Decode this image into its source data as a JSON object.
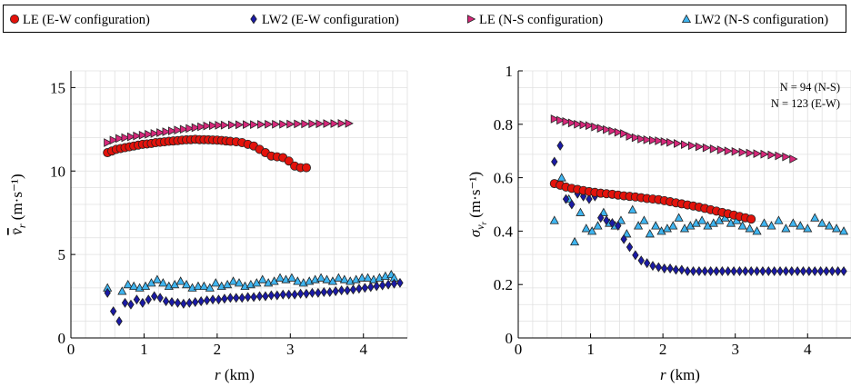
{
  "legend": {
    "entries": [
      {
        "label": "LE (E-W configuration)",
        "marker": "circle",
        "color": "#e3120b"
      },
      {
        "label": "LW2 (E-W configuration)",
        "marker": "diamond",
        "color": "#1a1aa6"
      },
      {
        "label": "LE (N-S configuration)",
        "marker": "triangle-right",
        "color": "#d6287a"
      },
      {
        "label": "LW2 (N-S configuration)",
        "marker": "triangle-up",
        "color": "#3fb5f0"
      }
    ]
  },
  "chart_data": [
    {
      "type": "scatter",
      "title": "",
      "xlabel": "r (km)",
      "ylabel": "v̄_r (m·s⁻¹)",
      "xlim": [
        0,
        4.6
      ],
      "ylim": [
        0,
        16
      ],
      "xticks": [
        0,
        1,
        2,
        3,
        4
      ],
      "yticks": [
        0,
        5,
        10,
        15
      ],
      "grid": true,
      "annotations": [],
      "series": [
        {
          "name": "LE (E-W configuration)",
          "x": [
            0.5,
            0.56,
            0.62,
            0.68,
            0.74,
            0.8,
            0.86,
            0.92,
            0.98,
            1.04,
            1.1,
            1.16,
            1.22,
            1.28,
            1.34,
            1.4,
            1.46,
            1.52,
            1.58,
            1.64,
            1.7,
            1.76,
            1.82,
            1.88,
            1.94,
            2.0,
            2.06,
            2.12,
            2.18,
            2.26,
            2.34,
            2.42,
            2.5,
            2.58,
            2.66,
            2.74,
            2.82,
            2.9,
            2.98,
            3.06,
            3.14,
            3.22
          ],
          "y": [
            11.1,
            11.2,
            11.3,
            11.35,
            11.4,
            11.45,
            11.5,
            11.55,
            11.6,
            11.62,
            11.65,
            11.7,
            11.72,
            11.75,
            11.78,
            11.8,
            11.82,
            11.85,
            11.87,
            11.88,
            11.9,
            11.88,
            11.88,
            11.87,
            11.86,
            11.85,
            11.83,
            11.8,
            11.78,
            11.75,
            11.7,
            11.6,
            11.5,
            11.3,
            11.1,
            10.9,
            10.85,
            10.8,
            10.6,
            10.3,
            10.2,
            10.2
          ]
        },
        {
          "name": "LW2 (E-W configuration)",
          "x": [
            0.5,
            0.58,
            0.66,
            0.74,
            0.82,
            0.9,
            0.98,
            1.06,
            1.14,
            1.22,
            1.3,
            1.38,
            1.46,
            1.54,
            1.62,
            1.7,
            1.78,
            1.86,
            1.94,
            2.02,
            2.1,
            2.18,
            2.26,
            2.34,
            2.42,
            2.5,
            2.58,
            2.66,
            2.74,
            2.82,
            2.9,
            2.98,
            3.06,
            3.14,
            3.22,
            3.3,
            3.38,
            3.46,
            3.54,
            3.62,
            3.7,
            3.78,
            3.86,
            3.94,
            4.02,
            4.1,
            4.18,
            4.26,
            4.34,
            4.42,
            4.5
          ],
          "y": [
            2.7,
            1.6,
            1.0,
            2.1,
            2.0,
            2.3,
            2.1,
            2.3,
            2.5,
            2.4,
            2.2,
            2.15,
            2.1,
            2.05,
            2.1,
            2.15,
            2.2,
            2.25,
            2.3,
            2.3,
            2.35,
            2.4,
            2.4,
            2.4,
            2.45,
            2.45,
            2.5,
            2.5,
            2.55,
            2.55,
            2.6,
            2.6,
            2.6,
            2.65,
            2.65,
            2.7,
            2.7,
            2.75,
            2.75,
            2.8,
            2.85,
            2.85,
            2.9,
            2.95,
            3.0,
            3.05,
            3.1,
            3.15,
            3.2,
            3.25,
            3.3
          ]
        },
        {
          "name": "LE (N-S configuration)",
          "x": [
            0.5,
            0.58,
            0.66,
            0.74,
            0.82,
            0.9,
            0.98,
            1.06,
            1.14,
            1.22,
            1.3,
            1.38,
            1.46,
            1.54,
            1.62,
            1.7,
            1.78,
            1.86,
            1.94,
            2.02,
            2.1,
            2.2,
            2.3,
            2.4,
            2.5,
            2.6,
            2.7,
            2.8,
            2.9,
            3.0,
            3.1,
            3.2,
            3.3,
            3.4,
            3.5,
            3.6,
            3.7,
            3.8
          ],
          "y": [
            11.7,
            11.85,
            11.95,
            12.0,
            12.05,
            12.1,
            12.15,
            12.2,
            12.25,
            12.3,
            12.35,
            12.4,
            12.45,
            12.5,
            12.55,
            12.6,
            12.65,
            12.7,
            12.72,
            12.74,
            12.75,
            12.76,
            12.77,
            12.78,
            12.78,
            12.79,
            12.8,
            12.8,
            12.8,
            12.81,
            12.82,
            12.82,
            12.83,
            12.83,
            12.84,
            12.84,
            12.85,
            12.85
          ]
        },
        {
          "name": "LW2 (N-S configuration)",
          "x": [
            0.5,
            0.7,
            0.78,
            0.86,
            0.94,
            1.02,
            1.1,
            1.18,
            1.26,
            1.34,
            1.42,
            1.5,
            1.58,
            1.66,
            1.74,
            1.82,
            1.9,
            1.98,
            2.06,
            2.14,
            2.22,
            2.3,
            2.38,
            2.46,
            2.54,
            2.62,
            2.7,
            2.78,
            2.86,
            2.94,
            3.02,
            3.1,
            3.18,
            3.26,
            3.34,
            3.42,
            3.5,
            3.58,
            3.66,
            3.74,
            3.82,
            3.9,
            3.98,
            4.06,
            4.14,
            4.22,
            4.3,
            4.38,
            4.42
          ],
          "y": [
            3.0,
            2.8,
            3.2,
            3.1,
            3.0,
            3.1,
            3.3,
            3.5,
            3.3,
            3.1,
            3.2,
            3.4,
            3.2,
            3.0,
            3.1,
            3.1,
            3.0,
            3.3,
            3.1,
            3.2,
            3.4,
            3.3,
            3.1,
            3.2,
            3.3,
            3.5,
            3.3,
            3.4,
            3.6,
            3.5,
            3.6,
            3.4,
            3.3,
            3.4,
            3.5,
            3.6,
            3.5,
            3.4,
            3.6,
            3.5,
            3.4,
            3.5,
            3.6,
            3.6,
            3.5,
            3.6,
            3.7,
            3.8,
            3.6
          ]
        }
      ]
    },
    {
      "type": "scatter",
      "title": "",
      "xlabel": "r (km)",
      "ylabel": "σ_v_r (m·s⁻¹)",
      "xlim": [
        0,
        4.6
      ],
      "ylim": [
        0,
        1
      ],
      "xticks": [
        0,
        1,
        2,
        3,
        4
      ],
      "yticks": [
        0,
        0.2,
        0.4,
        0.6,
        0.8,
        1
      ],
      "grid": true,
      "annotations": [
        "N = 94 (N-S)",
        "N = 123 (E-W)"
      ],
      "series": [
        {
          "name": "LE (E-W configuration)",
          "x": [
            0.5,
            0.58,
            0.66,
            0.74,
            0.82,
            0.9,
            0.98,
            1.06,
            1.14,
            1.22,
            1.3,
            1.38,
            1.46,
            1.54,
            1.62,
            1.7,
            1.78,
            1.86,
            1.94,
            2.02,
            2.1,
            2.18,
            2.26,
            2.34,
            2.42,
            2.5,
            2.58,
            2.66,
            2.74,
            2.82,
            2.9,
            2.98,
            3.06,
            3.14,
            3.22
          ],
          "y": [
            0.578,
            0.572,
            0.565,
            0.56,
            0.556,
            0.552,
            0.548,
            0.545,
            0.542,
            0.54,
            0.538,
            0.535,
            0.532,
            0.53,
            0.528,
            0.525,
            0.522,
            0.52,
            0.518,
            0.514,
            0.51,
            0.506,
            0.502,
            0.498,
            0.494,
            0.49,
            0.485,
            0.48,
            0.475,
            0.47,
            0.465,
            0.46,
            0.455,
            0.45,
            0.445
          ]
        },
        {
          "name": "LW2 (E-W configuration)",
          "x": [
            0.5,
            0.58,
            0.66,
            0.74,
            0.82,
            0.9,
            0.98,
            1.06,
            1.14,
            1.22,
            1.3,
            1.38,
            1.46,
            1.54,
            1.62,
            1.7,
            1.78,
            1.86,
            1.94,
            2.02,
            2.1,
            2.18,
            2.26,
            2.34,
            2.42,
            2.5,
            2.58,
            2.66,
            2.74,
            2.82,
            2.9,
            2.98,
            3.06,
            3.14,
            3.22,
            3.3,
            3.38,
            3.46,
            3.54,
            3.62,
            3.7,
            3.78,
            3.86,
            3.94,
            4.02,
            4.1,
            4.18,
            4.26,
            4.34,
            4.42,
            4.5
          ],
          "y": [
            0.66,
            0.72,
            0.52,
            0.5,
            0.54,
            0.53,
            0.52,
            0.53,
            0.45,
            0.44,
            0.43,
            0.42,
            0.37,
            0.34,
            0.31,
            0.29,
            0.28,
            0.27,
            0.265,
            0.26,
            0.26,
            0.255,
            0.255,
            0.25,
            0.25,
            0.25,
            0.25,
            0.25,
            0.25,
            0.25,
            0.25,
            0.25,
            0.25,
            0.25,
            0.25,
            0.25,
            0.25,
            0.25,
            0.25,
            0.25,
            0.25,
            0.25,
            0.25,
            0.25,
            0.25,
            0.25,
            0.25,
            0.25,
            0.25,
            0.25,
            0.25
          ]
        },
        {
          "name": "LE (N-S configuration)",
          "x": [
            0.5,
            0.58,
            0.66,
            0.74,
            0.82,
            0.9,
            0.98,
            1.06,
            1.14,
            1.22,
            1.3,
            1.38,
            1.46,
            1.54,
            1.62,
            1.7,
            1.78,
            1.86,
            1.94,
            2.02,
            2.1,
            2.2,
            2.3,
            2.4,
            2.5,
            2.6,
            2.7,
            2.8,
            2.9,
            3.0,
            3.1,
            3.2,
            3.3,
            3.4,
            3.5,
            3.6,
            3.7,
            3.8
          ],
          "y": [
            0.82,
            0.815,
            0.81,
            0.805,
            0.8,
            0.798,
            0.795,
            0.79,
            0.785,
            0.78,
            0.775,
            0.77,
            0.765,
            0.755,
            0.75,
            0.745,
            0.742,
            0.74,
            0.738,
            0.735,
            0.732,
            0.728,
            0.724,
            0.72,
            0.716,
            0.712,
            0.708,
            0.704,
            0.7,
            0.698,
            0.695,
            0.692,
            0.69,
            0.688,
            0.685,
            0.682,
            0.678,
            0.67
          ]
        },
        {
          "name": "LW2 (N-S configuration)",
          "x": [
            0.5,
            0.6,
            0.7,
            0.78,
            0.86,
            0.94,
            1.02,
            1.1,
            1.18,
            1.26,
            1.34,
            1.42,
            1.5,
            1.58,
            1.66,
            1.74,
            1.82,
            1.9,
            1.98,
            2.06,
            2.14,
            2.22,
            2.3,
            2.38,
            2.46,
            2.54,
            2.62,
            2.7,
            2.78,
            2.86,
            2.94,
            3.02,
            3.1,
            3.2,
            3.3,
            3.4,
            3.5,
            3.6,
            3.7,
            3.8,
            3.9,
            4.0,
            4.1,
            4.2,
            4.3,
            4.4,
            4.5
          ],
          "y": [
            0.44,
            0.6,
            0.52,
            0.36,
            0.47,
            0.41,
            0.4,
            0.42,
            0.47,
            0.43,
            0.42,
            0.44,
            0.39,
            0.48,
            0.42,
            0.44,
            0.39,
            0.42,
            0.4,
            0.41,
            0.42,
            0.45,
            0.41,
            0.42,
            0.43,
            0.44,
            0.42,
            0.43,
            0.44,
            0.45,
            0.43,
            0.44,
            0.42,
            0.41,
            0.4,
            0.43,
            0.42,
            0.44,
            0.41,
            0.43,
            0.42,
            0.41,
            0.45,
            0.43,
            0.42,
            0.41,
            0.4
          ]
        }
      ]
    }
  ]
}
